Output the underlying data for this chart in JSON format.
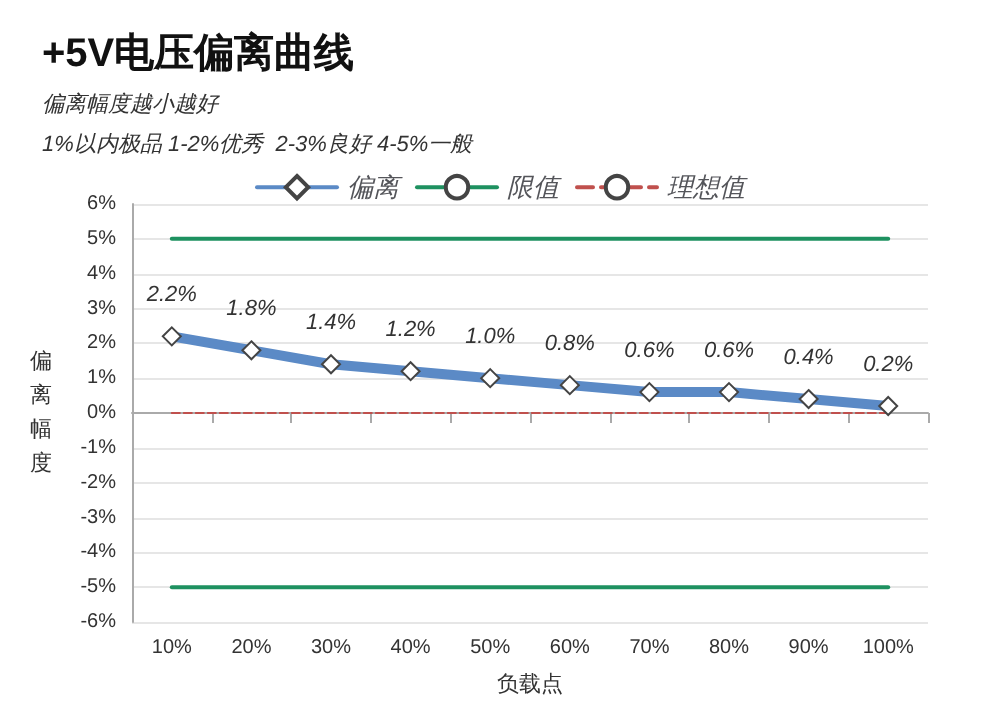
{
  "chart_data": {
    "type": "line",
    "title": "+5V电压偏离曲线",
    "subtitle": "偏离幅度越小越好",
    "annotations": [
      "1%以内极品 1-2%优秀  2-3%良好 4-5%一般"
    ],
    "xlabel": "负载点",
    "ylabel": "偏离幅度",
    "categories": [
      "10%",
      "20%",
      "30%",
      "40%",
      "50%",
      "60%",
      "70%",
      "80%",
      "90%",
      "100%"
    ],
    "series": [
      {
        "name": "偏离",
        "color": "#5b8ac6",
        "values": [
          2.2,
          1.8,
          1.4,
          1.2,
          1.0,
          0.8,
          0.6,
          0.6,
          0.4,
          0.2
        ],
        "marker": "diamond",
        "line_style": "solid",
        "value_labels": [
          "2.2%",
          "1.8%",
          "1.4%",
          "1.2%",
          "1.0%",
          "0.8%",
          "0.6%",
          "0.6%",
          "0.4%",
          "0.2%"
        ]
      },
      {
        "name": "限值",
        "color": "#1e9160",
        "values": [
          5,
          5,
          5,
          5,
          5,
          5,
          5,
          5,
          5,
          5
        ],
        "marker": "none",
        "line_style": "solid"
      },
      {
        "color": "#1e9160",
        "values": [
          -5,
          -5,
          -5,
          -5,
          -5,
          -5,
          -5,
          -5,
          -5,
          -5
        ],
        "marker": "none",
        "line_style": "solid"
      },
      {
        "name": "理想值",
        "color": "#c0504d",
        "values": [
          0,
          0,
          0,
          0,
          0,
          0,
          0,
          0,
          0,
          0
        ],
        "marker": "none",
        "line_style": "dashed"
      }
    ],
    "ylim": [
      -6,
      6
    ],
    "yticks": [
      {
        "value": -6,
        "label": "-6%"
      },
      {
        "value": -5,
        "label": "-5%"
      },
      {
        "value": -4,
        "label": "-4%"
      },
      {
        "value": -3,
        "label": "-3%"
      },
      {
        "value": -2,
        "label": "-2%"
      },
      {
        "value": -1,
        "label": "-1%"
      },
      {
        "value": 0,
        "label": "0%"
      },
      {
        "value": 1,
        "label": "1%"
      },
      {
        "value": 2,
        "label": "2%"
      },
      {
        "value": 3,
        "label": "3%"
      },
      {
        "value": 4,
        "label": "4%"
      },
      {
        "value": 5,
        "label": "5%"
      },
      {
        "value": 6,
        "label": "6%"
      }
    ],
    "grid": "y",
    "legend": "top"
  }
}
